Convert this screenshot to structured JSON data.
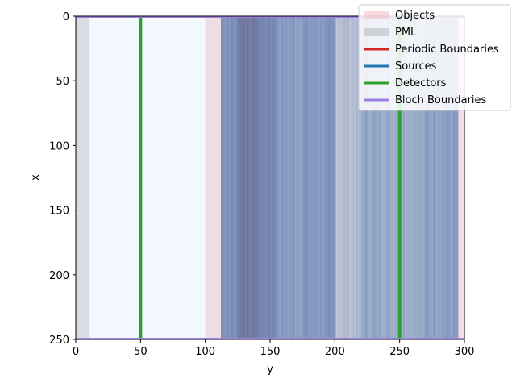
{
  "chart_data": {
    "type": "heatmap",
    "xlabel": "y",
    "ylabel": "x",
    "x_range": [
      0,
      300
    ],
    "y_range": [
      0,
      250
    ],
    "y_inverted": true,
    "x_ticks": [
      "0",
      "50",
      "100",
      "150",
      "200",
      "250",
      "300"
    ],
    "y_ticks": [
      "0",
      "50",
      "100",
      "150",
      "200",
      "250"
    ],
    "field_colormap": "Blues",
    "field_profile_along_y": [
      {
        "from": 0,
        "to": 100,
        "level": 0.02
      },
      {
        "from": 100,
        "to": 112,
        "level": 0.06
      },
      {
        "from": 112,
        "to": 125,
        "level": 0.78
      },
      {
        "from": 125,
        "to": 140,
        "level": 0.95
      },
      {
        "from": 140,
        "to": 155,
        "level": 0.85
      },
      {
        "from": 155,
        "to": 175,
        "level": 0.7
      },
      {
        "from": 175,
        "to": 200,
        "level": 0.72
      },
      {
        "from": 200,
        "to": 220,
        "level": 0.45
      },
      {
        "from": 220,
        "to": 240,
        "level": 0.62
      },
      {
        "from": 240,
        "to": 270,
        "level": 0.6
      },
      {
        "from": 270,
        "to": 295,
        "level": 0.68
      },
      {
        "from": 295,
        "to": 300,
        "level": 0.02
      }
    ],
    "regions": [
      {
        "name": "PML",
        "type": "PML",
        "y_range": [
          0,
          10
        ],
        "x_range": [
          0,
          250
        ]
      },
      {
        "name": "Objects",
        "type": "Objects",
        "y_range": [
          100,
          300
        ],
        "x_range": [
          0,
          250
        ]
      }
    ],
    "lines": [
      {
        "type": "Detectors",
        "orientation": "vertical",
        "y": 50
      },
      {
        "type": "Detectors",
        "orientation": "vertical",
        "y": 250
      },
      {
        "type": "Bloch Boundaries",
        "orientation": "horizontal",
        "x": 0
      },
      {
        "type": "Bloch Boundaries",
        "orientation": "horizontal",
        "x": 250
      }
    ],
    "legend": {
      "placement": "top-right",
      "entries": [
        {
          "label": "Objects",
          "color": "#f4c2c8",
          "kind": "patch"
        },
        {
          "label": "PML",
          "color": "#b7bcc4",
          "kind": "patch"
        },
        {
          "label": "Periodic Boundaries",
          "color": "#d62728",
          "kind": "line"
        },
        {
          "label": "Sources",
          "color": "#1f77b4",
          "kind": "line"
        },
        {
          "label": "Detectors",
          "color": "#2ca02c",
          "kind": "line"
        },
        {
          "label": "Bloch Boundaries",
          "color": "#9b7fe6",
          "kind": "line"
        }
      ]
    }
  }
}
